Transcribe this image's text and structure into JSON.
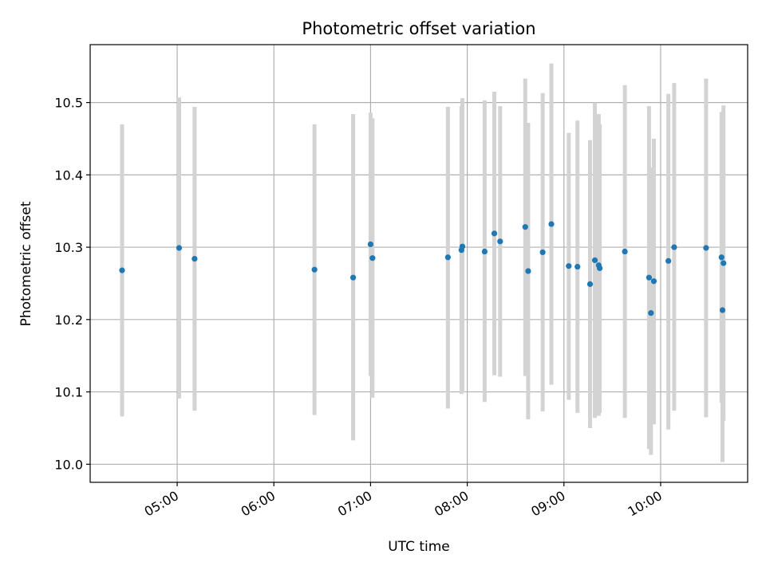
{
  "chart_data": {
    "type": "scatter",
    "title": "Photometric offset variation",
    "xlabel": "UTC time",
    "ylabel": "Photometric offset",
    "x_unit": "hours (UTC)",
    "xlim": [
      4.1,
      10.9
    ],
    "ylim": [
      9.975,
      10.58
    ],
    "grid": true,
    "x_ticks": [
      {
        "value": 5,
        "label": "05:00"
      },
      {
        "value": 6,
        "label": "06:00"
      },
      {
        "value": 7,
        "label": "07:00"
      },
      {
        "value": 8,
        "label": "08:00"
      },
      {
        "value": 9,
        "label": "09:00"
      },
      {
        "value": 10,
        "label": "10:00"
      }
    ],
    "y_ticks": [
      {
        "value": 10.0,
        "label": "10.0"
      },
      {
        "value": 10.1,
        "label": "10.1"
      },
      {
        "value": 10.2,
        "label": "10.2"
      },
      {
        "value": 10.3,
        "label": "10.3"
      },
      {
        "value": 10.4,
        "label": "10.4"
      },
      {
        "value": 10.5,
        "label": "10.5"
      }
    ],
    "marker_color": "#1f77b4",
    "errorbar_color": "#d3d3d3",
    "points": [
      {
        "x": 4.43,
        "y": 10.268,
        "ylo": 10.066,
        "yhi": 10.47
      },
      {
        "x": 5.02,
        "y": 10.299,
        "ylo": 10.091,
        "yhi": 10.507
      },
      {
        "x": 5.18,
        "y": 10.284,
        "ylo": 10.074,
        "yhi": 10.494
      },
      {
        "x": 6.42,
        "y": 10.269,
        "ylo": 10.068,
        "yhi": 10.47
      },
      {
        "x": 6.82,
        "y": 10.258,
        "ylo": 10.033,
        "yhi": 10.484
      },
      {
        "x": 7.0,
        "y": 10.304,
        "ylo": 10.122,
        "yhi": 10.486
      },
      {
        "x": 7.02,
        "y": 10.285,
        "ylo": 10.092,
        "yhi": 10.478
      },
      {
        "x": 7.8,
        "y": 10.286,
        "ylo": 10.077,
        "yhi": 10.494
      },
      {
        "x": 7.94,
        "y": 10.296,
        "ylo": 10.097,
        "yhi": 10.495
      },
      {
        "x": 7.95,
        "y": 10.301,
        "ylo": 10.099,
        "yhi": 10.506
      },
      {
        "x": 8.18,
        "y": 10.294,
        "ylo": 10.086,
        "yhi": 10.503
      },
      {
        "x": 8.28,
        "y": 10.319,
        "ylo": 10.123,
        "yhi": 10.515
      },
      {
        "x": 8.34,
        "y": 10.308,
        "ylo": 10.121,
        "yhi": 10.495
      },
      {
        "x": 8.6,
        "y": 10.328,
        "ylo": 10.122,
        "yhi": 10.533
      },
      {
        "x": 8.63,
        "y": 10.267,
        "ylo": 10.062,
        "yhi": 10.472
      },
      {
        "x": 8.78,
        "y": 10.293,
        "ylo": 10.073,
        "yhi": 10.513
      },
      {
        "x": 8.87,
        "y": 10.332,
        "ylo": 10.11,
        "yhi": 10.554
      },
      {
        "x": 9.05,
        "y": 10.274,
        "ylo": 10.089,
        "yhi": 10.458
      },
      {
        "x": 9.14,
        "y": 10.273,
        "ylo": 10.071,
        "yhi": 10.475
      },
      {
        "x": 9.27,
        "y": 10.249,
        "ylo": 10.05,
        "yhi": 10.448
      },
      {
        "x": 9.32,
        "y": 10.282,
        "ylo": 10.064,
        "yhi": 10.5
      },
      {
        "x": 9.36,
        "y": 10.275,
        "ylo": 10.067,
        "yhi": 10.484
      },
      {
        "x": 9.37,
        "y": 10.271,
        "ylo": 10.071,
        "yhi": 10.47
      },
      {
        "x": 9.63,
        "y": 10.294,
        "ylo": 10.064,
        "yhi": 10.524
      },
      {
        "x": 9.88,
        "y": 10.258,
        "ylo": 10.021,
        "yhi": 10.495
      },
      {
        "x": 9.9,
        "y": 10.209,
        "ylo": 10.013,
        "yhi": 10.41
      },
      {
        "x": 9.93,
        "y": 10.253,
        "ylo": 10.055,
        "yhi": 10.45
      },
      {
        "x": 10.08,
        "y": 10.281,
        "ylo": 10.048,
        "yhi": 10.512
      },
      {
        "x": 10.14,
        "y": 10.3,
        "ylo": 10.074,
        "yhi": 10.527
      },
      {
        "x": 10.47,
        "y": 10.299,
        "ylo": 10.065,
        "yhi": 10.533
      },
      {
        "x": 10.63,
        "y": 10.286,
        "ylo": 10.085,
        "yhi": 10.487
      },
      {
        "x": 10.64,
        "y": 10.213,
        "ylo": 10.003,
        "yhi": 10.423
      },
      {
        "x": 10.65,
        "y": 10.278,
        "ylo": 10.06,
        "yhi": 10.496
      }
    ]
  }
}
